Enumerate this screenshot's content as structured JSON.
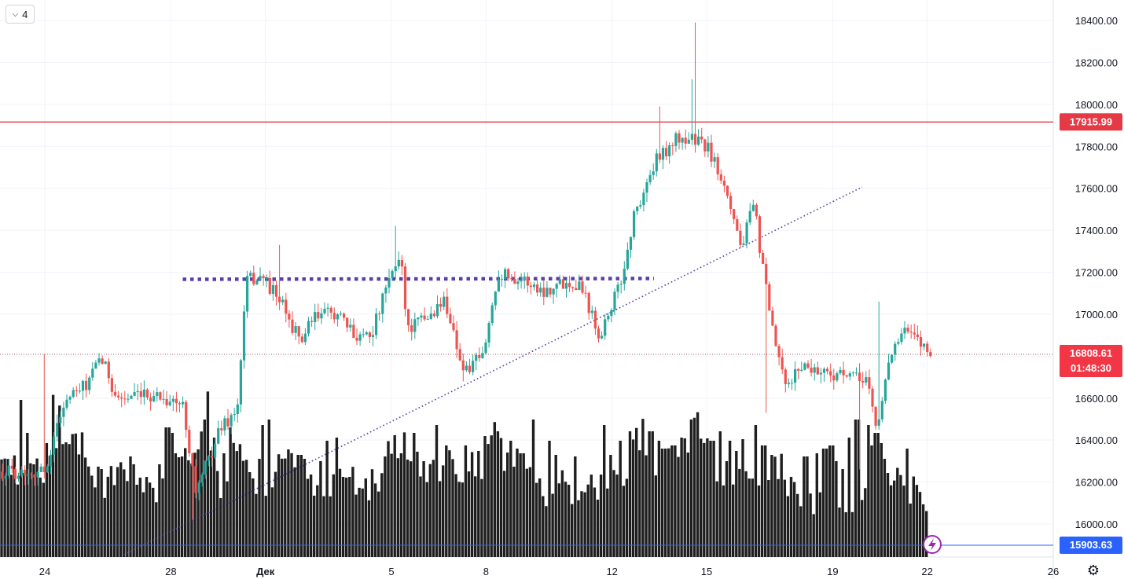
{
  "toolbar": {
    "collapse_count": "4",
    "collapse_icon": "chevron-down-icon"
  },
  "settings": {
    "icon": "gear-icon"
  },
  "colors": {
    "up": "#26a69a",
    "down": "#ef5350",
    "volume": "#1e1e1e",
    "grid": "#f0f3fa",
    "resistance": "#e53946",
    "trend": "#5b3fa8",
    "last_price": "#f23645",
    "low_line": "#2962ff",
    "flash": "#9c27b0"
  },
  "chart_data": {
    "type": "candlestick",
    "title": "",
    "x_ticks": [
      {
        "label": "24",
        "day": 0
      },
      {
        "label": "28",
        "day": 4
      },
      {
        "label": "Дек",
        "day": 7
      },
      {
        "label": "5",
        "day": 11
      },
      {
        "label": "8",
        "day": 14
      },
      {
        "label": "12",
        "day": 18
      },
      {
        "label": "15",
        "day": 21
      },
      {
        "label": "19",
        "day": 25
      },
      {
        "label": "22",
        "day": 28
      },
      {
        "label": "26",
        "day": 32
      }
    ],
    "y_ticks": [
      "18400.00",
      "18200.00",
      "18000.00",
      "17800.00",
      "17600.00",
      "17400.00",
      "17200.00",
      "17000.00",
      "16800.00",
      "16600.00",
      "16400.00",
      "16200.00",
      "16000.00"
    ],
    "ylim": [
      15880,
      18490
    ],
    "resistance_level": {
      "value": 17915.99,
      "label": "17915.99"
    },
    "last_price": {
      "value": 16808.61,
      "label": "16808.61",
      "countdown": "01:48:30"
    },
    "low_level": {
      "value": 15903.63,
      "label": "15903.63"
    },
    "range_line": {
      "value": 17170,
      "from_day": 5.4,
      "to_day": 20.3
    },
    "trend_line": {
      "from_day": 4.1,
      "from_value": 15920,
      "to_day": 24.3,
      "to_value": 17610
    },
    "anchors": [
      [
        0,
        16250
      ],
      [
        0.6,
        16580
      ],
      [
        1.3,
        16660
      ],
      [
        1.8,
        16790
      ],
      [
        2.3,
        16600
      ],
      [
        3.0,
        16600
      ],
      [
        3.5,
        16620
      ],
      [
        4.4,
        16560
      ],
      [
        4.8,
        16150
      ],
      [
        5.2,
        16310
      ],
      [
        5.6,
        16470
      ],
      [
        6.1,
        16530
      ],
      [
        6.4,
        17160
      ],
      [
        6.9,
        17180
      ],
      [
        7.5,
        17050
      ],
      [
        8.1,
        16870
      ],
      [
        8.6,
        16990
      ],
      [
        9.2,
        17010
      ],
      [
        9.8,
        16900
      ],
      [
        10.4,
        16920
      ],
      [
        10.9,
        17150
      ],
      [
        11.3,
        17290
      ],
      [
        11.5,
        16930
      ],
      [
        12.2,
        16990
      ],
      [
        12.7,
        17070
      ],
      [
        13.3,
        16720
      ],
      [
        13.9,
        16800
      ],
      [
        14.4,
        17200
      ],
      [
        15.2,
        17160
      ],
      [
        15.8,
        17110
      ],
      [
        16.4,
        17150
      ],
      [
        17.0,
        17150
      ],
      [
        17.6,
        16900
      ],
      [
        18.3,
        17160
      ],
      [
        18.7,
        17470
      ],
      [
        19.4,
        17730
      ],
      [
        20.0,
        17830
      ],
      [
        20.5,
        17840
      ],
      [
        21.0,
        17800
      ],
      [
        21.6,
        17620
      ],
      [
        22.1,
        17320
      ],
      [
        22.5,
        17520
      ],
      [
        23.0,
        16990
      ],
      [
        23.5,
        16640
      ],
      [
        24.0,
        16760
      ],
      [
        24.6,
        16730
      ],
      [
        25.2,
        16710
      ],
      [
        25.8,
        16690
      ],
      [
        26.1,
        16700
      ],
      [
        26.4,
        16430
      ],
      [
        26.8,
        16810
      ],
      [
        27.3,
        16920
      ],
      [
        27.8,
        16860
      ],
      [
        28.3,
        16810
      ]
    ],
    "volume_anchors": [
      [
        0,
        115
      ],
      [
        0.3,
        185
      ],
      [
        0.7,
        150
      ],
      [
        1.2,
        140
      ],
      [
        1.8,
        85
      ],
      [
        2.4,
        110
      ],
      [
        2.9,
        110
      ],
      [
        3.4,
        90
      ],
      [
        4.0,
        70
      ],
      [
        4.4,
        140
      ],
      [
        4.9,
        115
      ],
      [
        5.2,
        210
      ],
      [
        5.5,
        90
      ],
      [
        6.0,
        135
      ],
      [
        6.6,
        90
      ],
      [
        7.0,
        100
      ],
      [
        7.6,
        130
      ],
      [
        8.0,
        115
      ],
      [
        8.5,
        95
      ],
      [
        9.0,
        85
      ],
      [
        9.5,
        110
      ],
      [
        10.1,
        80
      ],
      [
        10.6,
        105
      ],
      [
        11.2,
        150
      ],
      [
        11.6,
        125
      ],
      [
        12.3,
        110
      ],
      [
        12.8,
        120
      ],
      [
        13.3,
        105
      ],
      [
        13.8,
        125
      ],
      [
        14.3,
        150
      ],
      [
        14.8,
        110
      ],
      [
        15.4,
        100
      ],
      [
        15.9,
        80
      ],
      [
        16.4,
        95
      ],
      [
        17.0,
        80
      ],
      [
        17.5,
        95
      ],
      [
        18.0,
        110
      ],
      [
        18.5,
        100
      ],
      [
        18.9,
        160
      ],
      [
        19.3,
        130
      ],
      [
        19.8,
        120
      ],
      [
        20.3,
        140
      ],
      [
        20.6,
        200
      ],
      [
        21.0,
        130
      ],
      [
        21.5,
        115
      ],
      [
        22.0,
        110
      ],
      [
        22.5,
        105
      ],
      [
        23.0,
        115
      ],
      [
        23.4,
        110
      ],
      [
        23.9,
        80
      ],
      [
        24.5,
        70
      ],
      [
        25.0,
        70
      ],
      [
        25.6,
        60
      ],
      [
        26.0,
        75
      ],
      [
        26.4,
        140
      ],
      [
        26.9,
        100
      ],
      [
        27.4,
        90
      ],
      [
        27.8,
        80
      ],
      [
        28.2,
        60
      ]
    ],
    "volume_spikes": [
      [
        27,
        200
      ],
      [
        36,
        158
      ],
      [
        43,
        118
      ],
      [
        58,
        145
      ],
      [
        79,
        112
      ],
      [
        95,
        102
      ],
      [
        124,
        115
      ],
      [
        128,
        100
      ],
      [
        130,
        112
      ],
      [
        158,
        105
      ],
      [
        165,
        128
      ],
      [
        204,
        118
      ],
      [
        208,
        100
      ],
      [
        213,
        165
      ],
      [
        217,
        158
      ],
      [
        218,
        140
      ],
      [
        221,
        115
      ],
      [
        224,
        132
      ],
      [
        232,
        128
      ],
      [
        235,
        112
      ],
      [
        236,
        100
      ],
      [
        249,
        115
      ],
      [
        258,
        118
      ],
      [
        260,
        138
      ],
      [
        262,
        175
      ],
      [
        267,
        108
      ],
      [
        272,
        152
      ],
      [
        284,
        132
      ],
      [
        294,
        165
      ],
      [
        305,
        138
      ],
      [
        312,
        108
      ],
      [
        318,
        108
      ],
      [
        331,
        125
      ],
      [
        335,
        168
      ],
      [
        343,
        175
      ],
      [
        366,
        100
      ],
      [
        376,
        102
      ],
      [
        381,
        130
      ],
      [
        386,
        125
      ],
      [
        397,
        105
      ],
      [
        409,
        122
      ],
      [
        415,
        148
      ],
      [
        429,
        152
      ],
      [
        437,
        102
      ],
      [
        444,
        102
      ],
      [
        465,
        100
      ],
      [
        489,
        128
      ],
      [
        503,
        148
      ],
      [
        511,
        132
      ],
      [
        519,
        124
      ],
      [
        528,
        158
      ],
      [
        538,
        122
      ],
      [
        557,
        168
      ],
      [
        569,
        142
      ],
      [
        591,
        142
      ],
      [
        608,
        135
      ],
      [
        626,
        135
      ],
      [
        635,
        160
      ],
      [
        650,
        148
      ],
      [
        657,
        138
      ],
      [
        664,
        132
      ],
      [
        680,
        175
      ],
      [
        698,
        148
      ],
      [
        707,
        130
      ],
      [
        733,
        128
      ],
      [
        769,
        168
      ],
      [
        778,
        130
      ],
      [
        790,
        148
      ],
      [
        803,
        160
      ],
      [
        818,
        150
      ],
      [
        828,
        160
      ],
      [
        837,
        148
      ],
      [
        845,
        138
      ],
      [
        857,
        142
      ],
      [
        868,
        152
      ],
      [
        880,
        175
      ],
      [
        893,
        150
      ],
      [
        906,
        148
      ],
      [
        917,
        160
      ],
      [
        923,
        122
      ],
      [
        930,
        148
      ],
      [
        938,
        135
      ],
      [
        946,
        150
      ],
      [
        961,
        168
      ],
      [
        972,
        142
      ],
      [
        982,
        130
      ],
      [
        993,
        122
      ],
      [
        1008,
        102
      ],
      [
        1025,
        128
      ],
      [
        1038,
        132
      ],
      [
        1050,
        138
      ],
      [
        1058,
        142
      ],
      [
        1065,
        122
      ],
      [
        1072,
        112
      ],
      [
        1081,
        152
      ],
      [
        1091,
        175
      ],
      [
        1105,
        168
      ],
      [
        1108,
        142
      ],
      [
        1115,
        158
      ],
      [
        1121,
        145
      ],
      [
        1127,
        125
      ],
      [
        1154,
        138
      ]
    ],
    "series_note": "candlestick OHLC values reconstructed from anchors; volume bars share the x axis"
  }
}
